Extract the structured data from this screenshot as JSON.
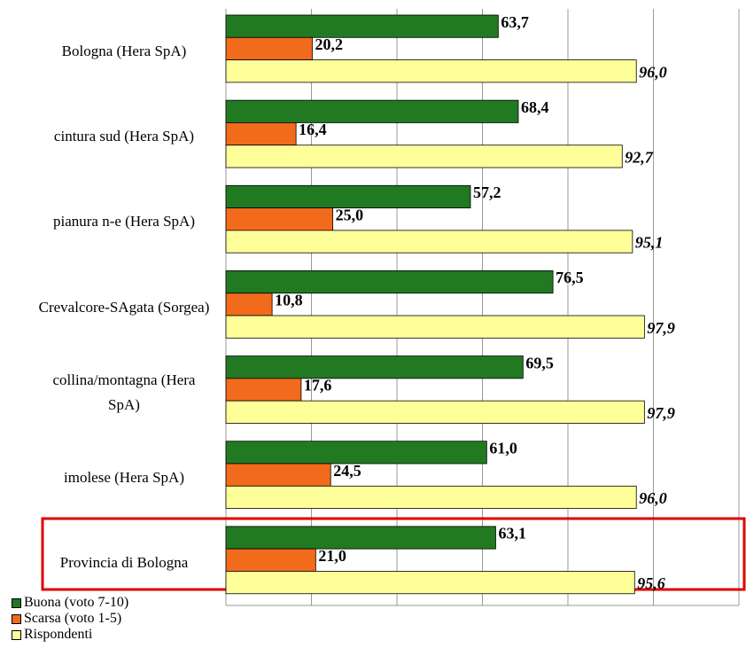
{
  "chart_data": {
    "type": "bar",
    "orientation": "horizontal",
    "categories": [
      "Bologna (Hera SpA)",
      "cintura sud (Hera SpA)",
      "pianura n-e (Hera SpA)",
      "Crevalcore-SAgata (Sorgea)",
      "collina/montagna (Hera SpA)",
      "imolese (Hera SpA)",
      "Provincia di Bologna"
    ],
    "series": [
      {
        "name": "Buona (voto 7-10)",
        "color": "#217a21",
        "values": [
          63.7,
          68.4,
          57.2,
          76.5,
          69.5,
          61.0,
          63.1
        ],
        "value_labels": [
          "63,7",
          "68,4",
          "57,2",
          "76,5",
          "69,5",
          "61,0",
          "63,1"
        ]
      },
      {
        "name": "Scarsa (voto 1-5)",
        "color": "#f26a1b",
        "values": [
          20.2,
          16.4,
          25.0,
          10.8,
          17.6,
          24.5,
          21.0
        ],
        "value_labels": [
          "20,2",
          "16,4",
          "25,0",
          "10,8",
          "17,6",
          "24,5",
          "21,0"
        ]
      },
      {
        "name": "Rispondenti",
        "color": "#ffff99",
        "values": [
          96.0,
          92.7,
          95.1,
          97.9,
          97.9,
          96.0,
          95.6
        ],
        "value_labels": [
          "96,0",
          "92,7",
          "95,1",
          "97,9",
          "97,9",
          "96,0",
          "95,6"
        ]
      }
    ],
    "xlim": [
      0,
      120
    ],
    "xticks": [
      0,
      20,
      40,
      60,
      80,
      100,
      120
    ],
    "grid": true,
    "legend": "bottom-left"
  }
}
